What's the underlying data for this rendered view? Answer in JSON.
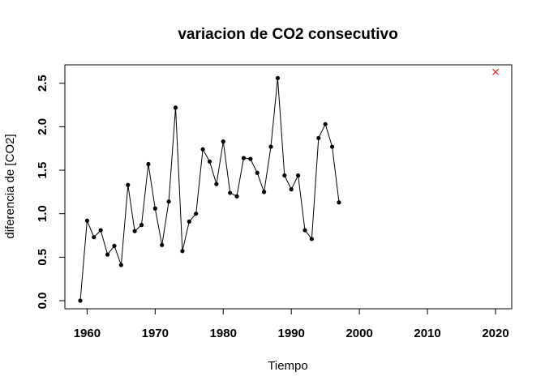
{
  "chart_data": {
    "type": "line",
    "title": "variacion de CO2 consecutivo",
    "xlabel": "Tiempo",
    "ylabel": "diferencia de [CO2]",
    "xlim": [
      1959,
      2020
    ],
    "ylim": [
      0,
      2.6
    ],
    "x_ticks": [
      1960,
      1970,
      1980,
      1990,
      2000,
      2010,
      2020
    ],
    "y_ticks": [
      0.0,
      0.5,
      1.0,
      1.5,
      2.0,
      2.5
    ],
    "x_tick_labels": [
      "1960",
      "1970",
      "1980",
      "1990",
      "2000",
      "2010",
      "2020"
    ],
    "y_tick_labels": [
      "0.0",
      "0.5",
      "1.0",
      "1.5",
      "2.0",
      "2.5"
    ],
    "grid": false,
    "series": [
      {
        "line_color": "#000000",
        "marker": "filled-circle",
        "x": [
          1959,
          1960,
          1961,
          1962,
          1963,
          1964,
          1965,
          1966,
          1967,
          1968,
          1969,
          1970,
          1971,
          1972,
          1973,
          1974,
          1975,
          1976,
          1977,
          1978,
          1979,
          1980,
          1981,
          1982,
          1983,
          1984,
          1985,
          1986,
          1987,
          1988,
          1989,
          1990,
          1991,
          1992,
          1993,
          1994,
          1995,
          1996,
          1997
        ],
        "y": [
          0.0,
          0.92,
          0.73,
          0.81,
          0.53,
          0.63,
          0.41,
          1.33,
          0.8,
          0.87,
          1.57,
          1.06,
          0.64,
          1.14,
          2.22,
          0.57,
          0.91,
          1.0,
          1.74,
          1.6,
          1.34,
          1.83,
          1.24,
          1.2,
          1.64,
          1.63,
          1.47,
          1.25,
          1.77,
          2.56,
          1.44,
          1.28,
          1.44,
          0.81,
          0.71,
          1.87,
          2.03,
          1.77,
          1.13
        ]
      }
    ],
    "annotations": [
      {
        "marker": "x",
        "color": "#ff0000",
        "x": 2020,
        "y": 2.63
      }
    ]
  }
}
